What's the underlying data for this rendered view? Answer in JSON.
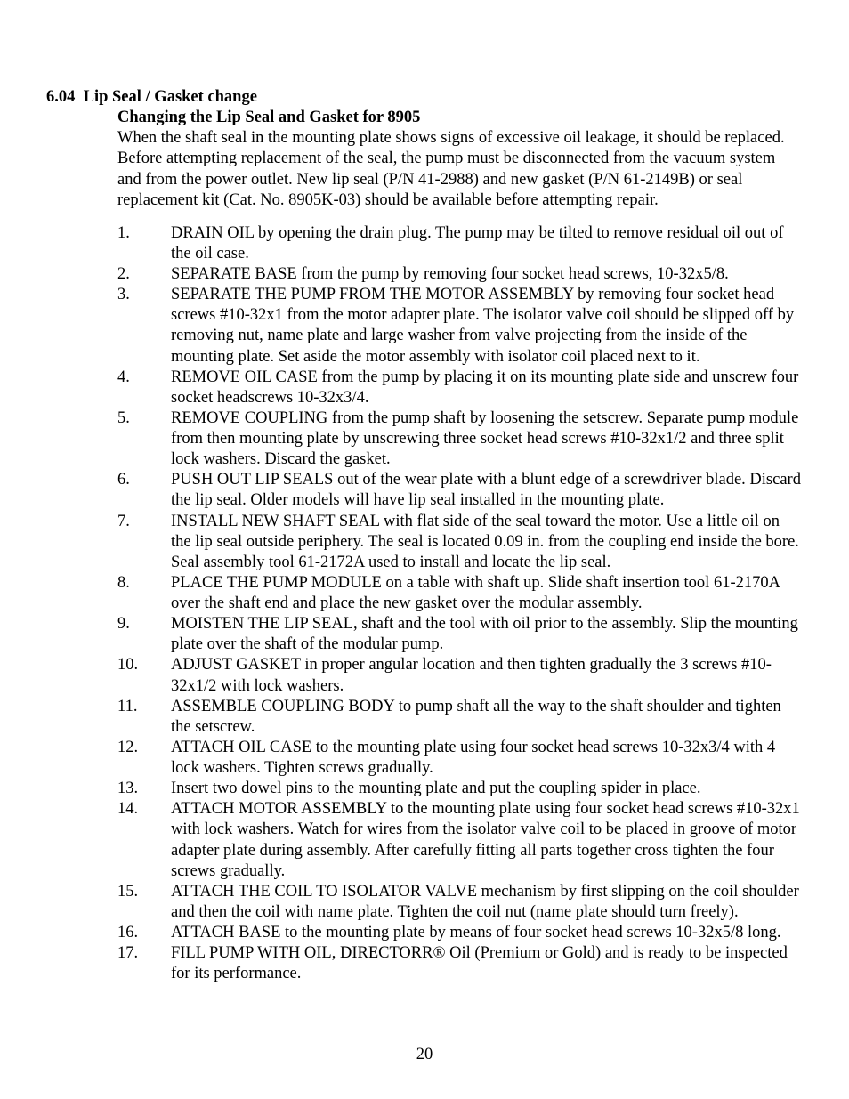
{
  "page": {
    "number": "20",
    "section_num": "6.04",
    "section_title": "Lip Seal / Gasket change",
    "sub_title": "Changing the Lip Seal and Gasket for 8905",
    "intro": "When the shaft seal in the mounting plate shows signs of excessive oil leakage, it should be replaced. Before attempting replacement of the seal, the pump must be disconnected from the vacuum system and from the power outlet. New lip seal (P/N 41-2988) and new gasket (P/N 61-2149B) or seal replacement kit (Cat. No. 8905K-03) should be available before attempting repair."
  },
  "steps": [
    {
      "n": "1.",
      "t": "DRAIN OIL by opening the drain plug.  The pump may be tilted to remove residual oil out of the oil case."
    },
    {
      "n": "2.",
      "t": "SEPARATE BASE from the pump by removing four socket head screws, 10-32x5/8."
    },
    {
      "n": "3.",
      "t": "SEPARATE THE PUMP FROM THE MOTOR ASSEMBLY by removing four socket head screws #10-32x1 from the motor adapter plate. The isolator valve coil should be slipped off by removing nut, name plate and large washer from valve projecting from the inside of the mounting plate. Set aside the motor assembly with isolator coil placed next to it."
    },
    {
      "n": "4.",
      "t": "REMOVE OIL CASE from the pump by placing it on its mounting plate side and unscrew four socket headscrews 10-32x3/4."
    },
    {
      "n": "5.",
      "t": "REMOVE COUPLING from the pump shaft by loosening the setscrew. Separate pump module from then mounting plate by unscrewing three socket head screws #10-32x1/2 and three split lock washers.  Discard the gasket."
    },
    {
      "n": "6.",
      "t": "PUSH OUT LIP SEALS out of the wear plate with a blunt edge of a screwdriver blade. Discard the lip seal.  Older models will have lip seal installed in the mounting plate."
    },
    {
      "n": "7.",
      "t": "INSTALL NEW SHAFT SEAL with flat side of the seal toward the motor. Use a little oil on the lip seal outside periphery. The seal is located 0.09 in. from the coupling end inside the bore. Seal assembly tool 61-2172A used to install and locate the lip seal."
    },
    {
      "n": "8.",
      "t": "PLACE THE PUMP MODULE on a table with shaft up. Slide shaft insertion tool 61-2170A over the shaft end and place the new gasket over the modular assembly."
    },
    {
      "n": "9.",
      "t": "MOISTEN THE LIP SEAL, shaft and the tool with oil prior to the assembly. Slip the mounting plate over the shaft of the modular pump."
    },
    {
      "n": "10.",
      "t": "ADJUST GASKET in proper angular location and then tighten gradually the 3 screws #10-32x1/2 with lock washers."
    },
    {
      "n": "11.",
      "t": "ASSEMBLE COUPLING BODY to pump shaft all the way to the shaft shoulder and tighten the setscrew."
    },
    {
      "n": "12.",
      "t": "ATTACH OIL CASE to the mounting plate using four socket head screws 10-32x3/4 with 4 lock washers. Tighten screws gradually."
    },
    {
      "n": "13.",
      "t": "Insert two dowel pins to the mounting plate and put the coupling spider in place."
    },
    {
      "n": "14.",
      "t": "ATTACH MOTOR ASSEMBLY to the mounting plate using four socket head screws #10-32x1 with lock washers. Watch for wires from the isolator valve coil to be placed in groove of motor adapter plate during assembly. After carefully fitting all parts together cross tighten the four screws gradually."
    },
    {
      "n": "15.",
      "t": "ATTACH THE COIL TO ISOLATOR VALVE mechanism by first slipping on the coil shoulder and then the coil with name plate. Tighten the coil nut (name plate should turn freely)."
    },
    {
      "n": "16.",
      "t": "ATTACH BASE to the mounting plate by means of four socket head screws 10-32x5/8 long."
    },
    {
      "n": "17.",
      "t": "FILL PUMP WITH OIL, DIRECTORR® Oil (Premium or Gold) and is ready to be inspected for its performance."
    }
  ]
}
